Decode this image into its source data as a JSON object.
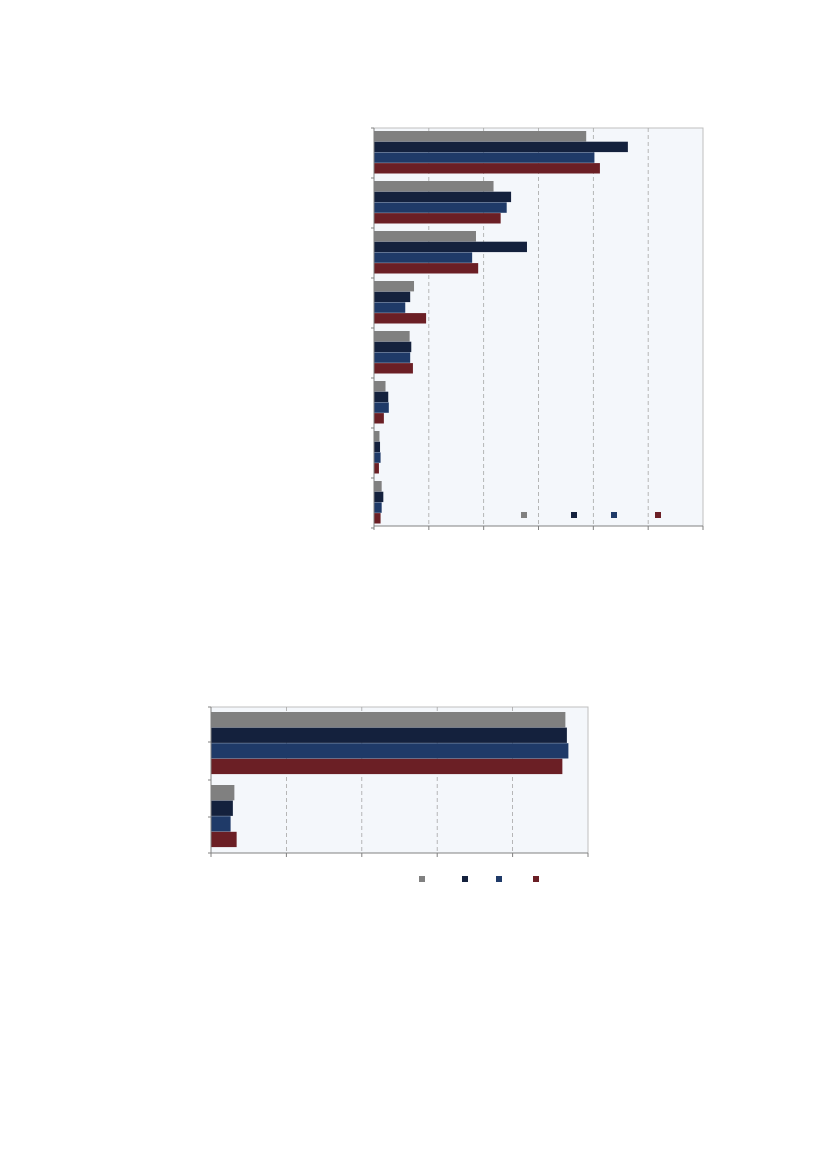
{
  "colors": {
    "plot_background": "#f4f7fb",
    "axis": "#808080",
    "gridline": "#a6a6a6"
  },
  "chart_data": [
    {
      "type": "bar",
      "orientation": "horizontal",
      "categories": [
        "",
        "",
        "",
        "",
        "",
        "",
        "",
        ""
      ],
      "xlim": [
        0,
        6
      ],
      "grid": true,
      "legend_position": "bottom-right",
      "series": [
        {
          "color": "#808080",
          "values": [
            3.87,
            2.18,
            1.86,
            0.73,
            0.65,
            0.21,
            0.1,
            0.14
          ]
        },
        {
          "color": "#14213d",
          "values": [
            4.63,
            2.5,
            2.79,
            0.66,
            0.68,
            0.26,
            0.11,
            0.17
          ]
        },
        {
          "color": "#1f3a68",
          "values": [
            4.02,
            2.42,
            1.79,
            0.57,
            0.66,
            0.27,
            0.12,
            0.14
          ]
        },
        {
          "color": "#6b1f25",
          "values": [
            4.12,
            2.31,
            1.9,
            0.95,
            0.71,
            0.18,
            0.09,
            0.12
          ]
        }
      ]
    },
    {
      "type": "bar",
      "orientation": "horizontal",
      "categories": [
        "",
        ""
      ],
      "xlim": [
        0,
        5
      ],
      "grid": true,
      "legend_position": "bottom-center",
      "series": [
        {
          "color": "#808080",
          "values": [
            4.7,
            0.31
          ]
        },
        {
          "color": "#14213d",
          "values": [
            4.72,
            0.29
          ]
        },
        {
          "color": "#1f3a68",
          "values": [
            4.74,
            0.26
          ]
        },
        {
          "color": "#6b1f25",
          "values": [
            4.66,
            0.34
          ]
        }
      ]
    }
  ]
}
